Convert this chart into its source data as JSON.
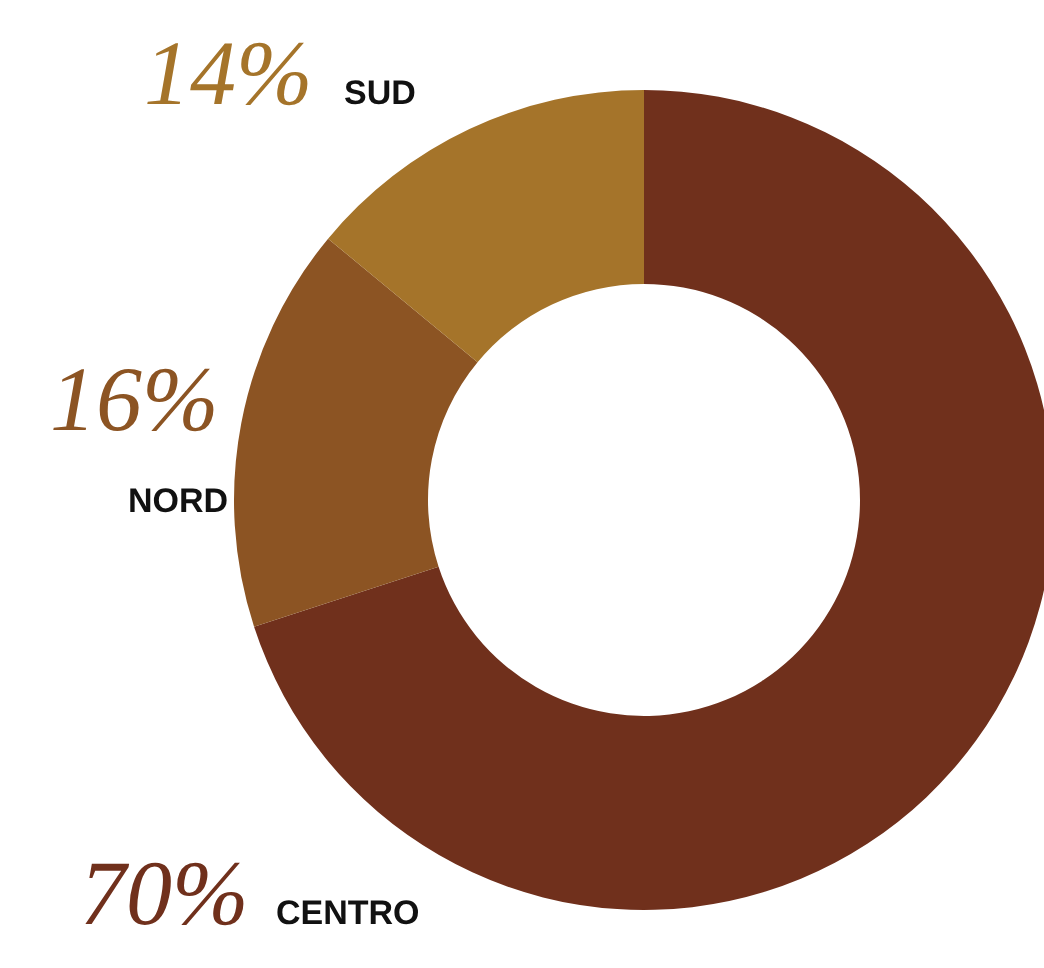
{
  "chart_data": {
    "type": "donut",
    "categories": [
      "CENTRO",
      "NORD",
      "SUD"
    ],
    "values": [
      70,
      16,
      14
    ],
    "value_labels": [
      "70%",
      "16%",
      "14%"
    ],
    "colors": [
      "#70301c",
      "#8c5423",
      "#a5742a"
    ]
  }
}
